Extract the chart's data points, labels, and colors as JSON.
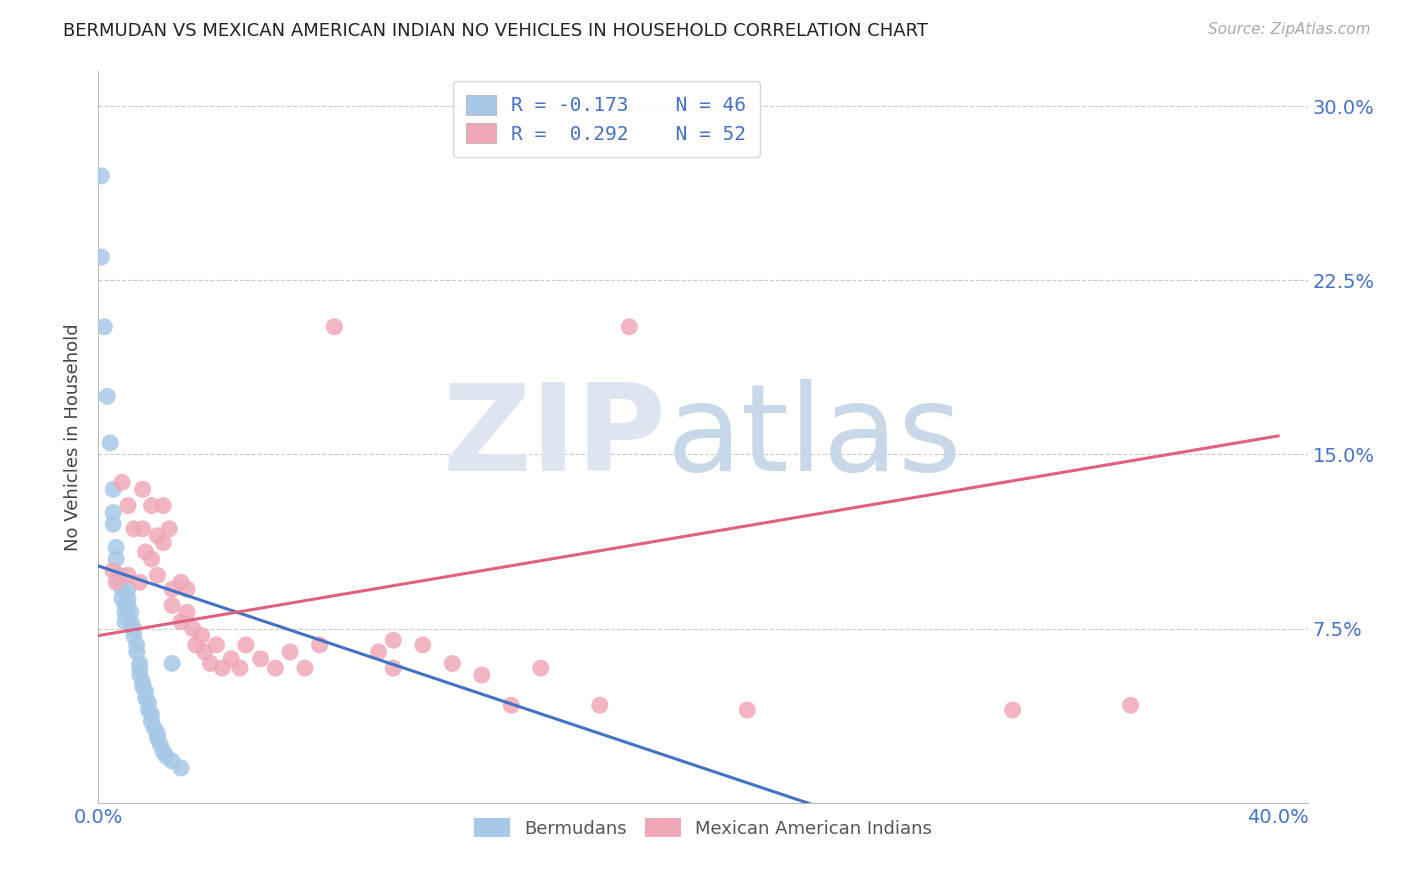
{
  "title": "BERMUDAN VS MEXICAN AMERICAN INDIAN NO VEHICLES IN HOUSEHOLD CORRELATION CHART",
  "source": "Source: ZipAtlas.com",
  "ylabel": "No Vehicles in Household",
  "blue_R": -0.173,
  "blue_N": 46,
  "pink_R": 0.292,
  "pink_N": 52,
  "blue_color": "#a8c8e8",
  "pink_color": "#f0a8b8",
  "blue_line_color": "#4472c4",
  "pink_line_color": "#e06080",
  "grid_color": "#cccccc",
  "axis_color": "#4472c4",
  "watermark_ZIP": "ZIP",
  "watermark_atlas": "atlas",
  "watermark_color": "#dde8f5",
  "xlim": [
    0.0,
    0.41
  ],
  "ylim": [
    0.0,
    0.315
  ],
  "blue_line_x0": 0.0,
  "blue_line_y0": 0.102,
  "blue_line_x1": 0.245,
  "blue_line_y1": -0.002,
  "pink_line_x0": 0.0,
  "pink_line_y0": 0.072,
  "pink_line_x1": 0.4,
  "pink_line_y1": 0.158,
  "blue_scatter_x": [
    0.001,
    0.001,
    0.002,
    0.003,
    0.004,
    0.005,
    0.005,
    0.005,
    0.006,
    0.006,
    0.007,
    0.007,
    0.008,
    0.008,
    0.009,
    0.009,
    0.009,
    0.01,
    0.01,
    0.01,
    0.011,
    0.011,
    0.012,
    0.012,
    0.013,
    0.013,
    0.014,
    0.014,
    0.014,
    0.015,
    0.015,
    0.016,
    0.016,
    0.017,
    0.017,
    0.018,
    0.018,
    0.019,
    0.02,
    0.02,
    0.021,
    0.022,
    0.023,
    0.025,
    0.025,
    0.028
  ],
  "blue_scatter_y": [
    0.27,
    0.235,
    0.205,
    0.175,
    0.155,
    0.135,
    0.125,
    0.12,
    0.11,
    0.105,
    0.098,
    0.095,
    0.092,
    0.088,
    0.085,
    0.082,
    0.078,
    0.092,
    0.088,
    0.085,
    0.082,
    0.078,
    0.075,
    0.072,
    0.068,
    0.065,
    0.06,
    0.058,
    0.055,
    0.052,
    0.05,
    0.048,
    0.045,
    0.043,
    0.04,
    0.038,
    0.035,
    0.032,
    0.03,
    0.028,
    0.025,
    0.022,
    0.02,
    0.06,
    0.018,
    0.015
  ],
  "pink_scatter_x": [
    0.005,
    0.006,
    0.008,
    0.01,
    0.01,
    0.012,
    0.014,
    0.015,
    0.015,
    0.016,
    0.018,
    0.018,
    0.02,
    0.02,
    0.022,
    0.022,
    0.024,
    0.025,
    0.025,
    0.028,
    0.028,
    0.03,
    0.03,
    0.032,
    0.033,
    0.035,
    0.036,
    0.038,
    0.04,
    0.042,
    0.045,
    0.048,
    0.05,
    0.055,
    0.06,
    0.065,
    0.07,
    0.075,
    0.08,
    0.095,
    0.1,
    0.1,
    0.11,
    0.12,
    0.13,
    0.14,
    0.15,
    0.17,
    0.18,
    0.22,
    0.31,
    0.35
  ],
  "pink_scatter_y": [
    0.1,
    0.095,
    0.138,
    0.128,
    0.098,
    0.118,
    0.095,
    0.135,
    0.118,
    0.108,
    0.128,
    0.105,
    0.115,
    0.098,
    0.128,
    0.112,
    0.118,
    0.092,
    0.085,
    0.095,
    0.078,
    0.092,
    0.082,
    0.075,
    0.068,
    0.072,
    0.065,
    0.06,
    0.068,
    0.058,
    0.062,
    0.058,
    0.068,
    0.062,
    0.058,
    0.065,
    0.058,
    0.068,
    0.205,
    0.065,
    0.07,
    0.058,
    0.068,
    0.06,
    0.055,
    0.042,
    0.058,
    0.042,
    0.205,
    0.04,
    0.04,
    0.042
  ],
  "legend_box_color": "#ffffff",
  "legend_border_color": "#cccccc"
}
